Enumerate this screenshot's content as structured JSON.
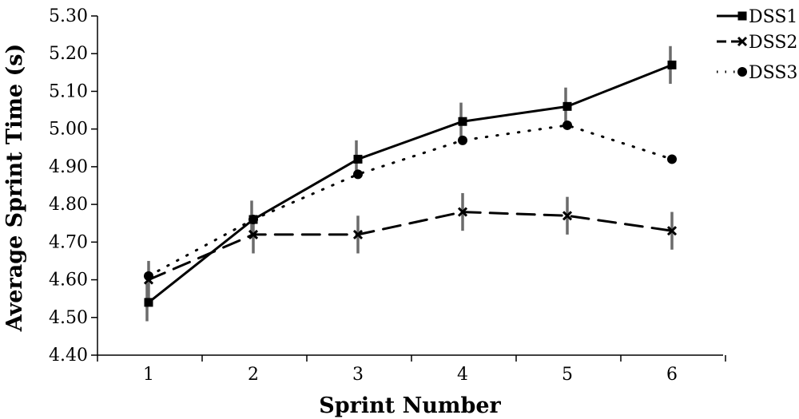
{
  "chart_data": {
    "type": "line",
    "categories": [
      "1",
      "2",
      "3",
      "4",
      "5",
      "6"
    ],
    "xlabel": "Sprint Number",
    "ylabel": "Average Sprint Time (s)",
    "ylim": [
      4.4,
      5.3
    ],
    "yticks": [
      "4.40",
      "4.50",
      "4.60",
      "4.70",
      "4.80",
      "4.90",
      "5.00",
      "5.10",
      "5.20",
      "5.30"
    ],
    "grid": false,
    "legend_position": "top-right",
    "series": [
      {
        "name": "DSS1",
        "values": [
          4.54,
          4.76,
          4.92,
          5.02,
          5.06,
          5.17
        ],
        "error": [
          0.05,
          0.05,
          0.05,
          0.05,
          0.05,
          0.05
        ],
        "marker": "square",
        "line_style": "solid",
        "color": "#000000"
      },
      {
        "name": "DSS2",
        "values": [
          4.6,
          4.72,
          4.72,
          4.78,
          4.77,
          4.73
        ],
        "error": [
          0.05,
          0.05,
          0.05,
          0.05,
          0.05,
          0.05
        ],
        "marker": "x",
        "line_style": "dashed",
        "color": "#000000"
      },
      {
        "name": "DSS3",
        "values": [
          4.61,
          4.76,
          4.88,
          4.97,
          5.01,
          4.92
        ],
        "marker": "circle",
        "line_style": "dotted",
        "color": "#000000"
      }
    ],
    "error_bar_color": "#6b6b6b"
  }
}
